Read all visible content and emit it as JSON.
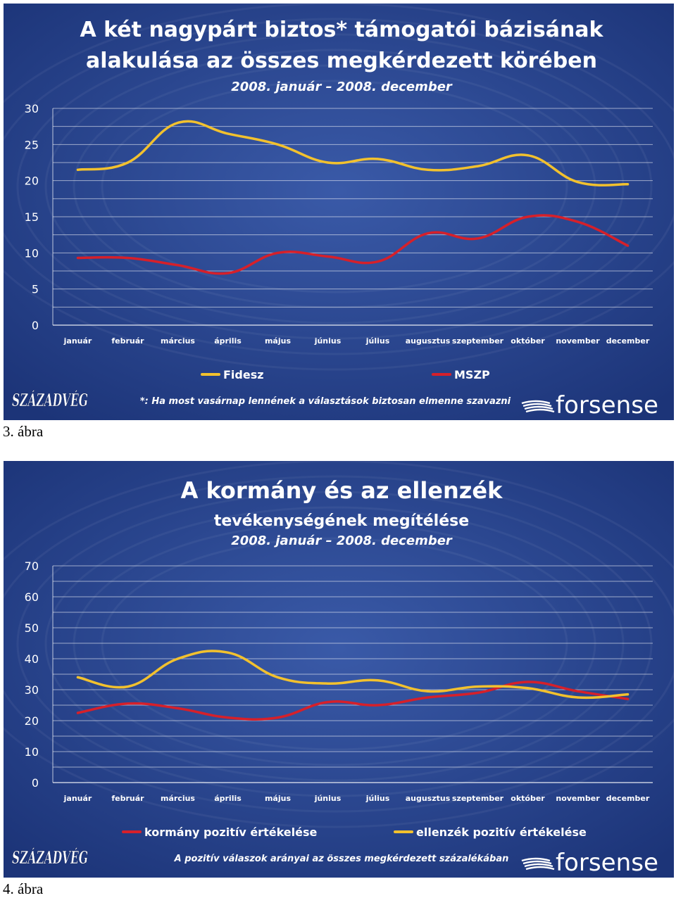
{
  "captions": [
    "3. ábra",
    "4. ábra"
  ],
  "chart_data": [
    {
      "type": "line",
      "title": "A két nagypárt biztos* támogatói bázisának",
      "title2": "alakulása az összes megkérdezett körében",
      "subtitle": "2008. január – 2008. december",
      "categories": [
        "január",
        "február",
        "március",
        "április",
        "május",
        "június",
        "július",
        "augusztus",
        "szeptember",
        "október",
        "november",
        "december"
      ],
      "yticks": [
        "0",
        "5",
        "10",
        "15",
        "20",
        "25",
        "30"
      ],
      "ylim": [
        0,
        30
      ],
      "grid": true,
      "legend": "bottom",
      "series": [
        {
          "name": "Fidesz",
          "color": "#f2c12e",
          "values": [
            21.5,
            22.5,
            28,
            26.5,
            25,
            22.5,
            23,
            21.5,
            22,
            23.5,
            19.8,
            19.5
          ]
        },
        {
          "name": "MSZP",
          "color": "#d6202a",
          "values": [
            9.3,
            9.3,
            8.3,
            7.2,
            10,
            9.5,
            8.8,
            12.7,
            12,
            15,
            14.3,
            11
          ]
        }
      ],
      "footnote": "*: Ha most vasárnap lennének a választások biztosan elmenne szavazni",
      "logo_left": "SZÁZADVÉG",
      "logo_right": "forsense"
    },
    {
      "type": "line",
      "title": "A kormány és az ellenzék",
      "title2": "tevékenységének megítélése",
      "subtitle": "2008. január – 2008. december",
      "categories": [
        "január",
        "február",
        "március",
        "április",
        "május",
        "június",
        "július",
        "augusztus",
        "szeptember",
        "október",
        "november",
        "december"
      ],
      "yticks": [
        "0",
        "10",
        "20",
        "30",
        "40",
        "50",
        "60",
        "70"
      ],
      "ylim": [
        0,
        70
      ],
      "grid": true,
      "legend": "bottom",
      "series": [
        {
          "name": "kormány pozitív értékelése",
          "color": "#d6202a",
          "values": [
            22.5,
            25.5,
            24,
            21,
            21,
            26,
            25,
            27.5,
            29,
            32.5,
            29.5,
            27
          ]
        },
        {
          "name": "ellenzék pozitív értékelése",
          "color": "#f2c12e",
          "values": [
            34,
            31,
            40,
            42,
            34,
            32,
            33,
            29.5,
            31,
            30.5,
            27.5,
            28.5
          ]
        }
      ],
      "footnote": "A pozitív válaszok arányai az összes megkérdezett százalékában",
      "logo_left": "SZÁZADVÉG",
      "logo_right": "forsense"
    }
  ]
}
